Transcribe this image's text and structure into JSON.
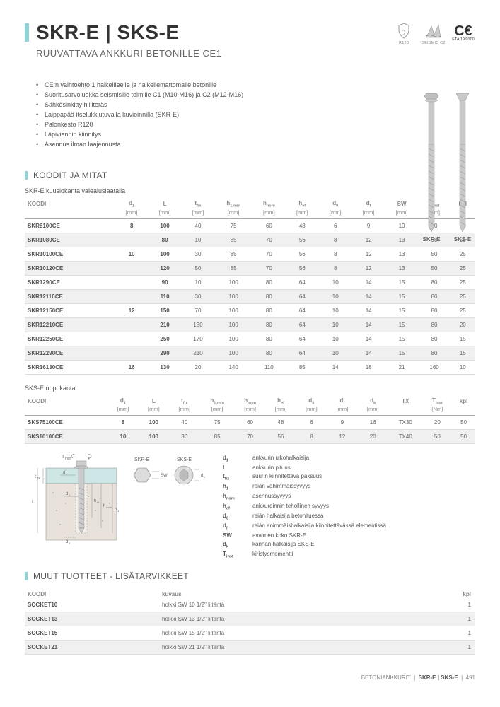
{
  "header": {
    "title": "SKR-E | SKS-E",
    "subtitle": "RUUVATTAVA ANKKURI BETONILLE CE1",
    "badges": {
      "r120": "R120",
      "seismic": "SEISMIC C2",
      "eta": "ETA 19/0100"
    }
  },
  "features": [
    "CE:n vaihtoehto 1 halkeilleelle ja halkeilemattomalle betonille",
    "Suoritusarvoluokka seismisille toimille C1 (M10-M16) ja C2 (M12-M16)",
    "Sähkösinkitty hiiliteräs",
    "Laippapää itselukkiutuvalla kuvioinnilla (SKR-E)",
    "Palonkesto R120",
    "Läpiviennin kiinnitys",
    "Asennus ilman laajennusta"
  ],
  "section_codes": "KOODIT JA MITAT",
  "table1": {
    "caption": "SKR-E kuusiokanta valealuslaatalla",
    "columns": [
      "KOODI",
      "d₁",
      "L",
      "t_fix",
      "h₁,min",
      "h_nom",
      "h_ef",
      "d₀",
      "d_f",
      "SW",
      "T_inst",
      "kpl"
    ],
    "units": [
      "",
      "[mm]",
      "[mm]",
      "[mm]",
      "[mm]",
      "[mm]",
      "[mm]",
      "[mm]",
      "[mm]",
      "[mm]",
      "[Nm]",
      ""
    ],
    "rows": [
      {
        "code": "SKR8100CE",
        "d1": "8",
        "L": "100",
        "tfix": "40",
        "h1": "75",
        "hnom": "60",
        "hef": "48",
        "d0": "6",
        "df": "9",
        "sw": "10",
        "tinst": "20",
        "kpl": "50"
      },
      {
        "code": "SKR1080CE",
        "d1": "",
        "L": "80",
        "tfix": "10",
        "h1": "85",
        "hnom": "70",
        "hef": "56",
        "d0": "8",
        "df": "12",
        "sw": "13",
        "tinst": "50",
        "kpl": "50"
      },
      {
        "code": "SKR10100CE",
        "d1": "10",
        "L": "100",
        "tfix": "30",
        "h1": "85",
        "hnom": "70",
        "hef": "56",
        "d0": "8",
        "df": "12",
        "sw": "13",
        "tinst": "50",
        "kpl": "25"
      },
      {
        "code": "SKR10120CE",
        "d1": "",
        "L": "120",
        "tfix": "50",
        "h1": "85",
        "hnom": "70",
        "hef": "56",
        "d0": "8",
        "df": "12",
        "sw": "13",
        "tinst": "50",
        "kpl": "25"
      },
      {
        "code": "SKR1290CE",
        "d1": "",
        "L": "90",
        "tfix": "10",
        "h1": "100",
        "hnom": "80",
        "hef": "64",
        "d0": "10",
        "df": "14",
        "sw": "15",
        "tinst": "80",
        "kpl": "25"
      },
      {
        "code": "SKR12110CE",
        "d1": "",
        "L": "110",
        "tfix": "30",
        "h1": "100",
        "hnom": "80",
        "hef": "64",
        "d0": "10",
        "df": "14",
        "sw": "15",
        "tinst": "80",
        "kpl": "25"
      },
      {
        "code": "SKR12150CE",
        "d1": "12",
        "L": "150",
        "tfix": "70",
        "h1": "100",
        "hnom": "80",
        "hef": "64",
        "d0": "10",
        "df": "14",
        "sw": "15",
        "tinst": "80",
        "kpl": "25"
      },
      {
        "code": "SKR12210CE",
        "d1": "",
        "L": "210",
        "tfix": "130",
        "h1": "100",
        "hnom": "80",
        "hef": "64",
        "d0": "10",
        "df": "14",
        "sw": "15",
        "tinst": "80",
        "kpl": "20"
      },
      {
        "code": "SKR12250CE",
        "d1": "",
        "L": "250",
        "tfix": "170",
        "h1": "100",
        "hnom": "80",
        "hef": "64",
        "d0": "10",
        "df": "14",
        "sw": "15",
        "tinst": "80",
        "kpl": "15"
      },
      {
        "code": "SKR12290CE",
        "d1": "",
        "L": "290",
        "tfix": "210",
        "h1": "100",
        "hnom": "80",
        "hef": "64",
        "d0": "10",
        "df": "14",
        "sw": "15",
        "tinst": "80",
        "kpl": "15"
      },
      {
        "code": "SKR16130CE",
        "d1": "16",
        "L": "130",
        "tfix": "20",
        "h1": "140",
        "hnom": "110",
        "hef": "85",
        "d0": "14",
        "df": "18",
        "sw": "21",
        "tinst": "160",
        "kpl": "10"
      }
    ]
  },
  "table2": {
    "caption": "SKS-E uppokanta",
    "columns": [
      "KOODI",
      "d₁",
      "L",
      "t_fix",
      "h₁,min",
      "h_nom",
      "h_ef",
      "d₀",
      "d_f",
      "d_k",
      "TX",
      "T_inst",
      "kpl"
    ],
    "units": [
      "",
      "[mm]",
      "[mm]",
      "[mm]",
      "[mm]",
      "[mm]",
      "[mm]",
      "[mm]",
      "[mm]",
      "[mm]",
      "",
      "[Nm]",
      ""
    ],
    "rows": [
      {
        "code": "SKS75100CE",
        "d1": "8",
        "L": "100",
        "tfix": "40",
        "h1": "75",
        "hnom": "60",
        "hef": "48",
        "d0": "6",
        "df": "9",
        "dk": "16",
        "tx": "TX30",
        "tinst": "20",
        "kpl": "50"
      },
      {
        "code": "SKS10100CE",
        "d1": "10",
        "L": "100",
        "tfix": "30",
        "h1": "85",
        "hnom": "70",
        "hef": "56",
        "d0": "8",
        "df": "12",
        "dk": "20",
        "tx": "TX40",
        "tinst": "50",
        "kpl": "50"
      }
    ]
  },
  "diagram": {
    "labels": {
      "tinst": "T_inst",
      "tfix": "t_fix",
      "L": "L",
      "df": "d_f",
      "d1": "d₁",
      "d0": "d₀",
      "hef": "h_ef",
      "hnom": "h_nom",
      "h1": "h₁",
      "sw": "SW",
      "dk": "d_k",
      "skre": "SKR-E",
      "skse": "SKS-E"
    }
  },
  "legend": [
    {
      "sym": "d₁",
      "desc": "ankkurin ulkohalkaisija"
    },
    {
      "sym": "L",
      "desc": "ankkurin pituus"
    },
    {
      "sym": "t_fix",
      "desc": "suurin kiinnitettävä paksuus"
    },
    {
      "sym": "h₁",
      "desc": "reiän vähimmäissyvyys"
    },
    {
      "sym": "h_nom",
      "desc": "asennussyvyys"
    },
    {
      "sym": "h_ef",
      "desc": "ankkuroinnin tehollinen syvyys"
    },
    {
      "sym": "d₀",
      "desc": "reiän halkaisija betonituessa"
    },
    {
      "sym": "d_f",
      "desc": "reiän enimmäishalkaisija kiinnitettävässä elementissä"
    },
    {
      "sym": "SW",
      "desc": "avaimen koko SKR-E"
    },
    {
      "sym": "d_k",
      "desc": "kannan halkaisija SKS-E"
    },
    {
      "sym": "T_inst",
      "desc": "kiristysmomentti"
    }
  ],
  "section_acc": "MUUT TUOTTEET - LISÄTARVIKKEET",
  "acc_table": {
    "columns": [
      "KOODI",
      "kuvaus",
      "kpl"
    ],
    "rows": [
      {
        "code": "SOCKET10",
        "desc": "holkki SW 10 1/2\" liitäntä",
        "kpl": "1"
      },
      {
        "code": "SOCKET13",
        "desc": "holkki SW 13 1/2\" liitäntä",
        "kpl": "1"
      },
      {
        "code": "SOCKET15",
        "desc": "holkki SW 15 1/2\" liitäntä",
        "kpl": "1"
      },
      {
        "code": "SOCKET21",
        "desc": "holkki SW 21 1/2\" liitäntä",
        "kpl": "1"
      }
    ]
  },
  "footer": {
    "category": "BETONIANKKURIT",
    "product": "SKR-E | SKS-E",
    "page": "491"
  },
  "colors": {
    "accent": "#8fd4d4",
    "text": "#555",
    "muted": "#888",
    "row_alt": "#f0f0f0",
    "border": "#ddd"
  }
}
